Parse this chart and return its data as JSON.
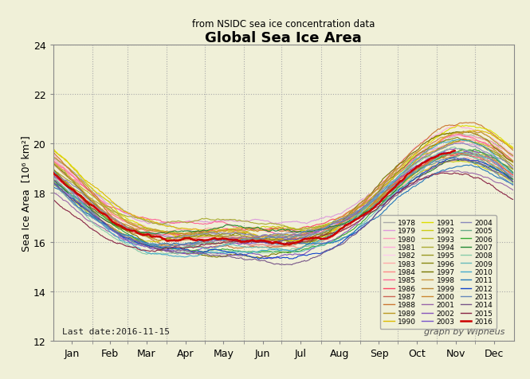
{
  "title": "Global Sea Ice Area",
  "subtitle": "from NSIDC sea ice concentration data",
  "ylabel": "Sea Ice Area  [10⁶ km²]",
  "xlabel": "",
  "ylim": [
    12,
    24
  ],
  "xlim": [
    0,
    365
  ],
  "background_color": "#f0f0d8",
  "grid_color": "#ccccaa",
  "text_color": "#000000",
  "last_date": "Last date:2016-11-15",
  "credit": "graph by Wipneus",
  "years": [
    1978,
    1979,
    1980,
    1981,
    1982,
    1983,
    1984,
    1985,
    1986,
    1987,
    1988,
    1989,
    1990,
    1991,
    1992,
    1993,
    1994,
    1995,
    1996,
    1997,
    1998,
    1999,
    2000,
    2001,
    2002,
    2003,
    2004,
    2005,
    2006,
    2007,
    2008,
    2009,
    2010,
    2011,
    2012,
    2013,
    2014,
    2015,
    2016
  ],
  "year_colors": {
    "1978": "#aaaaaa",
    "1979": "#dd99dd",
    "1980": "#ff99bb",
    "1981": "#ffaadd",
    "1982": "#ffccee",
    "1983": "#ffaaaa",
    "1984": "#ff8888",
    "1985": "#ff6699",
    "1986": "#ff4466",
    "1987": "#cc6655",
    "1988": "#cc7733",
    "1989": "#bb9922",
    "1990": "#ddbb00",
    "1991": "#dddd00",
    "1992": "#cccc11",
    "1993": "#bbbb22",
    "1994": "#aaaa33",
    "1995": "#999922",
    "1996": "#888811",
    "1997": "#777700",
    "1998": "#cc9944",
    "1999": "#bb8833",
    "2000": "#cc8833",
    "2001": "#9966aa",
    "2002": "#8855bb",
    "2003": "#7755cc",
    "2004": "#8888bb",
    "2005": "#66aa88",
    "2006": "#33aa33",
    "2007": "#228833",
    "2008": "#88ccaa",
    "2009": "#66bbbb",
    "2010": "#44aacc",
    "2011": "#2277bb",
    "2012": "#1144cc",
    "2013": "#6688bb",
    "2014": "#775588",
    "2015": "#882244",
    "2016": "#cc0000"
  },
  "month_days": [
    0,
    31,
    59,
    90,
    120,
    151,
    181,
    212,
    243,
    273,
    304,
    334,
    365
  ],
  "month_names": [
    "Jan",
    "Feb",
    "Mar",
    "Apr",
    "May",
    "Jun",
    "Jul",
    "Aug",
    "Sep",
    "Oct",
    "Nov",
    "Dec"
  ],
  "day_2016_end": 319
}
